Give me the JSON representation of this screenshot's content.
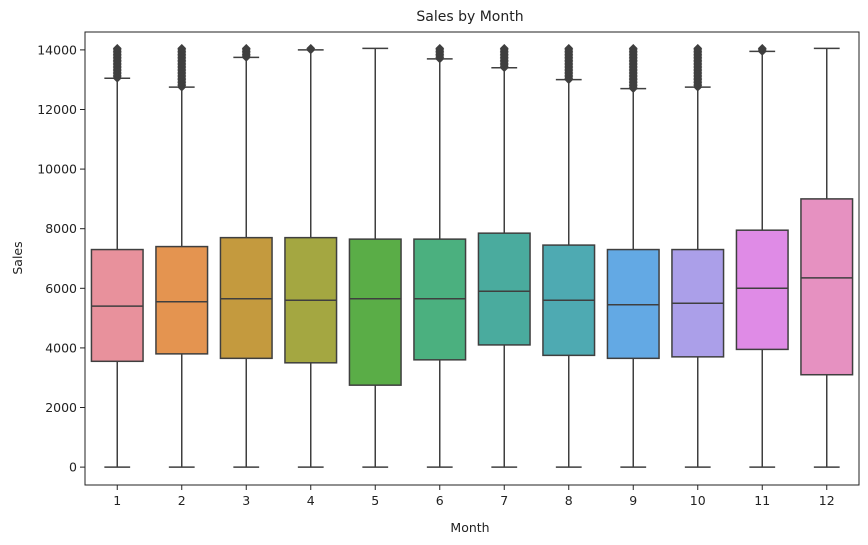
{
  "chart_data": {
    "type": "box",
    "title": "Sales by Month",
    "xlabel": "Month",
    "ylabel": "Sales",
    "ylim": [
      -600,
      14600
    ],
    "yticks": [
      0,
      2000,
      4000,
      6000,
      8000,
      10000,
      12000,
      14000
    ],
    "ytick_labels": [
      "0",
      "2000",
      "4000",
      "6000",
      "8000",
      "10000",
      "12000",
      "14000"
    ],
    "grid": false,
    "legend": "none",
    "categories": [
      "1",
      "2",
      "3",
      "4",
      "5",
      "6",
      "7",
      "8",
      "9",
      "10",
      "11",
      "12"
    ],
    "boxes": [
      {
        "category": "1",
        "min": 0,
        "q1": 3550,
        "median": 5400,
        "q3": 7300,
        "whisker_high": 13050,
        "outliers_range": [
          13050,
          14050
        ],
        "color": "#e8919c"
      },
      {
        "category": "2",
        "min": 0,
        "q1": 3800,
        "median": 5550,
        "q3": 7400,
        "whisker_high": 12750,
        "outliers_range": [
          12750,
          14050
        ],
        "color": "#e49450"
      },
      {
        "category": "3",
        "min": 0,
        "q1": 3650,
        "median": 5650,
        "q3": 7700,
        "whisker_high": 13750,
        "outliers_range": [
          13750,
          14050
        ],
        "color": "#c49a3e"
      },
      {
        "category": "4",
        "min": 0,
        "q1": 3500,
        "median": 5600,
        "q3": 7700,
        "whisker_high": 14000,
        "outliers_range": [
          14000,
          14050
        ],
        "color": "#a4a741"
      },
      {
        "category": "5",
        "min": 0,
        "q1": 2750,
        "median": 5650,
        "q3": 7650,
        "whisker_high": 14050,
        "outliers_range": null,
        "color": "#5aad47"
      },
      {
        "category": "6",
        "min": 0,
        "q1": 3600,
        "median": 5650,
        "q3": 7650,
        "whisker_high": 13700,
        "outliers_range": [
          13700,
          14050
        ],
        "color": "#4bb07f"
      },
      {
        "category": "7",
        "min": 0,
        "q1": 4100,
        "median": 5900,
        "q3": 7850,
        "whisker_high": 13400,
        "outliers_range": [
          13400,
          14050
        ],
        "color": "#4aab9e"
      },
      {
        "category": "8",
        "min": 0,
        "q1": 3750,
        "median": 5600,
        "q3": 7450,
        "whisker_high": 13000,
        "outliers_range": [
          13000,
          14050
        ],
        "color": "#4eaab2"
      },
      {
        "category": "9",
        "min": 0,
        "q1": 3650,
        "median": 5450,
        "q3": 7300,
        "whisker_high": 12700,
        "outliers_range": [
          12700,
          14050
        ],
        "color": "#63a9e4"
      },
      {
        "category": "10",
        "min": 0,
        "q1": 3700,
        "median": 5500,
        "q3": 7300,
        "whisker_high": 12750,
        "outliers_range": [
          12750,
          14050
        ],
        "color": "#ab9fe9"
      },
      {
        "category": "11",
        "min": 0,
        "q1": 3950,
        "median": 6000,
        "q3": 7950,
        "whisker_high": 13950,
        "outliers_range": [
          13950,
          14050
        ],
        "color": "#df8be6"
      },
      {
        "category": "12",
        "min": 0,
        "q1": 3100,
        "median": 6350,
        "q3": 9000,
        "whisker_high": 14050,
        "outliers_range": null,
        "color": "#e691c1"
      }
    ]
  }
}
